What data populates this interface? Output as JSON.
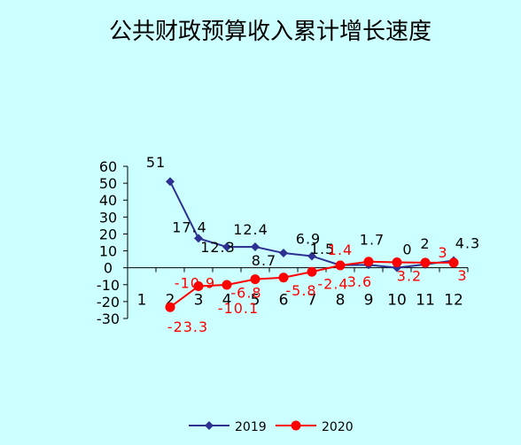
{
  "chart_data": {
    "type": "line",
    "title": "公共财政预算收入累计增长速度",
    "categories": [
      "1",
      "2",
      "3",
      "4",
      "5",
      "6",
      "7",
      "8",
      "9",
      "10",
      "11",
      "12"
    ],
    "ylim": [
      -30,
      60
    ],
    "yticks": [
      "60",
      "50",
      "40",
      "30",
      "20",
      "10",
      "0",
      "-10",
      "-20",
      "-30"
    ],
    "grid": false,
    "legend_position": "bottom",
    "series": [
      {
        "name": "2019",
        "color": "#2e3192",
        "marker": "diamond",
        "values": [
          null,
          51,
          17.4,
          12.3,
          12.4,
          8.7,
          6.9,
          1.5,
          1.7,
          0,
          2,
          4.3
        ],
        "labels": [
          "",
          "51",
          "17.4",
          "12.3",
          "12.4",
          "8.7",
          "6.9",
          "1.5",
          "1.7",
          "0",
          "2",
          "4.3"
        ]
      },
      {
        "name": "2020",
        "color": "#ff0000",
        "marker": "circle",
        "values": [
          null,
          -23.3,
          -10.9,
          -10.1,
          -6.8,
          -5.8,
          -2.4,
          1.4,
          3.6,
          3.2,
          3,
          3
        ],
        "labels": [
          "",
          "-23.3",
          "-10.9",
          "-10.1",
          "-6.8",
          "-5.8",
          "-2.4",
          "1.4",
          "3.6",
          "3.2",
          "3",
          "3"
        ]
      }
    ]
  }
}
